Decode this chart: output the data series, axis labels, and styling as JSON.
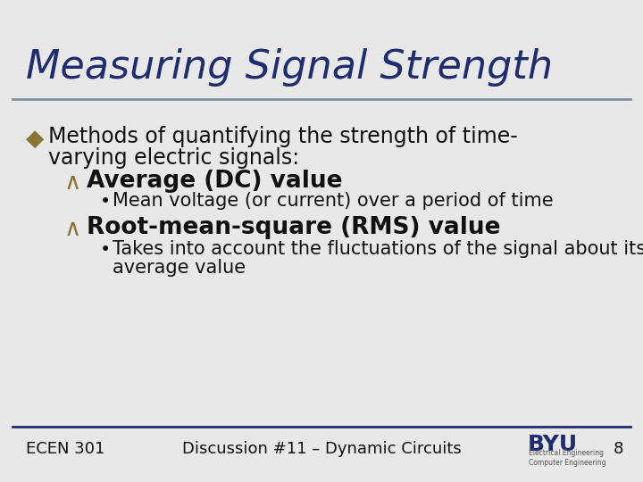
{
  "title": "Measuring Signal Strength",
  "title_color": "#1F2D6E",
  "bg_color": "#E8E8E8",
  "separator_color": "#8090A0",
  "footer_line_color": "#1F2D6E",
  "bullet1_diamond": "◆",
  "bullet1_color": "#8B7536",
  "bullet1_text_line1": "Methods of quantifying the strength of time-",
  "bullet1_text_line2": "varying electric signals:",
  "bullet1_text_color": "#111111",
  "sub_bullet_color": "#8B7536",
  "sub_bullet_char": "∧",
  "sub1_text": "Average (DC) value",
  "sub1_detail": "Mean voltage (or current) over a period of time",
  "sub2_text": "Root-mean-square (RMS) value",
  "sub2_detail_line1": "Takes into account the fluctuations of the signal about its",
  "sub2_detail_line2": "average value",
  "footer_left": "ECEN 301",
  "footer_center": "Discussion #11 – Dynamic Circuits",
  "footer_page": "8",
  "footer_color": "#111111",
  "title_fontsize": 32,
  "body_fontsize": 17,
  "sub_header_fontsize": 19,
  "detail_fontsize": 15,
  "footer_fontsize": 13
}
